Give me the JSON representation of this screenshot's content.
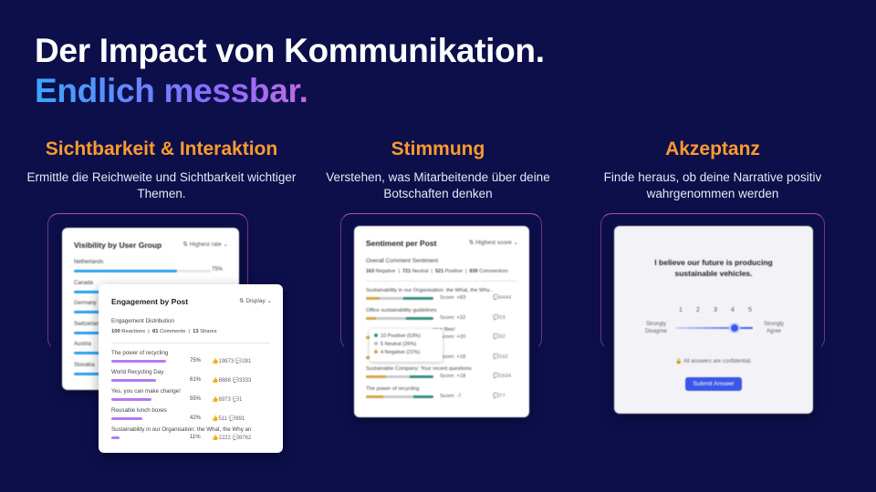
{
  "headline": {
    "line1": "Der Impact von Kommunikation.",
    "line2": "Endlich messbar."
  },
  "columns": [
    {
      "title": "Sichtbarkeit & Interaktion",
      "text": "Ermittle die Reichweite und Sichtbarkeit wichtiger Themen."
    },
    {
      "title": "Stimmung",
      "text": "Verstehen, was Mitarbeitende über deine Botschaften denken"
    },
    {
      "title": "Akzeptanz",
      "text": "Finde heraus, ob deine Narrative positiv wahrgenommen werden"
    }
  ],
  "visibility": {
    "title": "Visibility by User Group",
    "dropdown": "Highest rate",
    "items": [
      {
        "label": "Netherlands",
        "value": "75%",
        "fill": 0.75
      },
      {
        "label": "Canada",
        "value": "",
        "fill": 0.6
      },
      {
        "label": "Germany",
        "value": "",
        "fill": 0.5
      },
      {
        "label": "Switzerland",
        "value": "",
        "fill": 0.45
      },
      {
        "label": "Austria",
        "value": "",
        "fill": 0.35
      },
      {
        "label": "Slovakia",
        "value": "",
        "fill": 0.25
      }
    ]
  },
  "engagement": {
    "title": "Engagement by Post",
    "dropdown": "Display",
    "dist_label": "Engagement Distribution",
    "reactions": "100",
    "reactions_label": "Reactions",
    "comments": "81",
    "comments_label": "Comments",
    "shares": "13",
    "shares_label": "Shares",
    "posts": [
      {
        "title": "The power of recycling",
        "pct": "75%",
        "fill": 0.75,
        "likes": "19873",
        "comments": "281"
      },
      {
        "title": "World Recycling Day",
        "pct": "61%",
        "fill": 0.61,
        "likes": "8888",
        "comments": "3333"
      },
      {
        "title": "Yes, you can make change!",
        "pct": "55%",
        "fill": 0.55,
        "likes": "8973",
        "comments": "1"
      },
      {
        "title": "Reusable lunch boxes",
        "pct": "42%",
        "fill": 0.42,
        "likes": "511",
        "comments": "891"
      },
      {
        "title": "Sustainability in our Organisation: the What, the Why an",
        "pct": "11%",
        "fill": 0.11,
        "likes": "2222",
        "comments": "8762"
      }
    ]
  },
  "sentiment": {
    "title": "Sentiment per Post",
    "dropdown": "Highest score",
    "overall_label": "Overall Comment Sentiment",
    "negative": "163",
    "negative_label": "Negative",
    "neutral": "721",
    "neutral_label": "Neutral",
    "positive": "521",
    "positive_label": "Positive",
    "commentors": "830",
    "commentors_label": "Commentors",
    "posts": [
      {
        "title": "Sustainability in our Organisation: the What, the Why...",
        "score": "Score: +83",
        "comments": "4444",
        "neg": 0.2,
        "neu": 0.35,
        "pos": 0.45
      },
      {
        "title": "Office sustainability guidelines",
        "score": "Score: +32",
        "comments": "19",
        "neg": 0.15,
        "neu": 0.45,
        "pos": 0.4
      },
      {
        "title": "your files!",
        "score": "Score: +20",
        "comments": "32",
        "neg": 0.25,
        "neu": 0.4,
        "pos": 0.35
      },
      {
        "title": "",
        "score": "Score: +18",
        "comments": "162",
        "neg": 0.2,
        "neu": 0.45,
        "pos": 0.35
      },
      {
        "title": "Sustainable Company: Your recent questions",
        "score": "Score: +18",
        "comments": "1634",
        "neg": 0.3,
        "neu": 0.35,
        "pos": 0.35
      },
      {
        "title": "The power of recycling",
        "score": "Score: -7",
        "comments": "77",
        "neg": 0.25,
        "neu": 0.45,
        "pos": 0.3
      }
    ],
    "tooltip": [
      {
        "text": "10 Positive (53%)",
        "color": "#3a8f7f"
      },
      {
        "text": "5 Neutral (26%)",
        "color": "#b9b9c2"
      },
      {
        "text": "4 Negative (21%)",
        "color": "#d9a24a"
      }
    ]
  },
  "survey": {
    "question": "I believe our future is producing sustainable vehicles.",
    "scale": [
      "1",
      "2",
      "3",
      "4",
      "5"
    ],
    "selected": 4,
    "left_label": "Strongly Disagree",
    "right_label": "Strongly Agree",
    "confidential": "All answers are confidential.",
    "submit": "Submit Answer"
  },
  "colors": {
    "bg": "#0c0f4a",
    "accent": "#ff9a2e",
    "blue_bar": "#2aa3ef",
    "purple_bar": "#b27bf0",
    "primary_btn": "#3b57e8"
  }
}
